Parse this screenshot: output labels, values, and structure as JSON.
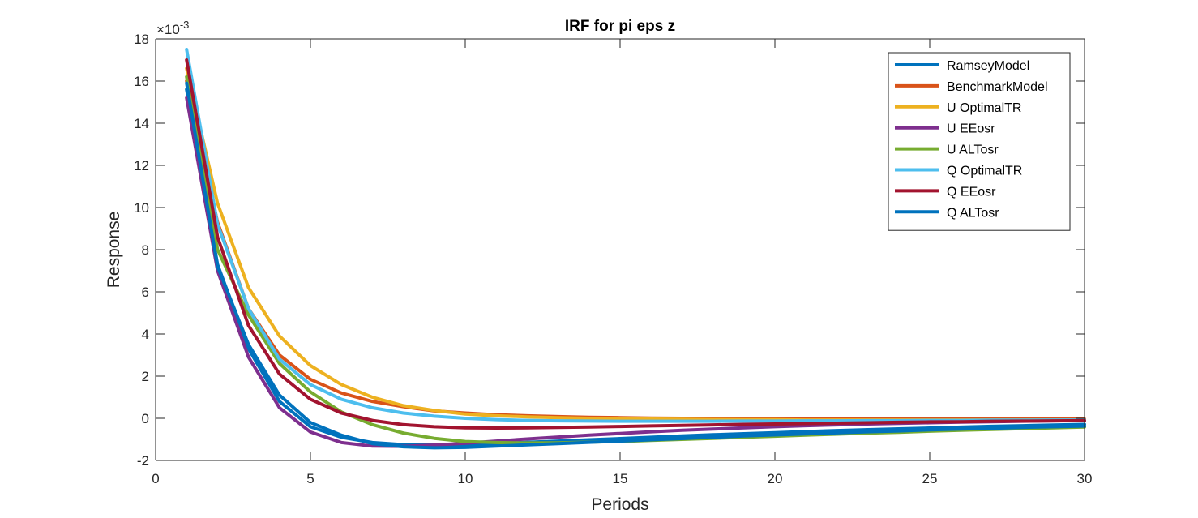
{
  "chart_data": {
    "type": "line",
    "title": "IRF for pi eps z",
    "xlabel": "Periods",
    "ylabel": "Response",
    "y_exponent_label": "×10",
    "y_exponent_power": "-3",
    "xlim": [
      0,
      30
    ],
    "ylim": [
      -2,
      18
    ],
    "x_ticks": [
      0,
      5,
      10,
      15,
      20,
      25,
      30
    ],
    "y_ticks": [
      -2,
      0,
      2,
      4,
      6,
      8,
      10,
      12,
      14,
      16,
      18
    ],
    "grid": false,
    "legend_position": "top-right",
    "x": [
      1,
      2,
      3,
      4,
      5,
      6,
      7,
      8,
      9,
      10,
      11,
      12,
      13,
      14,
      15,
      16,
      17,
      18,
      19,
      20,
      21,
      22,
      23,
      24,
      25,
      26,
      27,
      28,
      29,
      30
    ],
    "series": [
      {
        "name": "RamseyModel",
        "color": "#0072BD",
        "values": [
          15.6,
          7.3,
          3.3,
          0.8,
          -0.4,
          -0.9,
          -1.15,
          -1.25,
          -1.27,
          -1.25,
          -1.2,
          -1.14,
          -1.08,
          -1.02,
          -0.96,
          -0.9,
          -0.84,
          -0.78,
          -0.73,
          -0.68,
          -0.63,
          -0.58,
          -0.54,
          -0.5,
          -0.46,
          -0.42,
          -0.38,
          -0.35,
          -0.32,
          -0.29
        ]
      },
      {
        "name": "BenchmarkModel",
        "color": "#D95319",
        "values": [
          16.0,
          9.3,
          5.2,
          3.0,
          1.85,
          1.2,
          0.8,
          0.55,
          0.35,
          0.25,
          0.17,
          0.12,
          0.08,
          0.05,
          0.03,
          0.01,
          0.0,
          -0.01,
          -0.02,
          -0.03,
          -0.03,
          -0.04,
          -0.04,
          -0.04,
          -0.04,
          -0.04,
          -0.04,
          -0.04,
          -0.04,
          -0.04
        ]
      },
      {
        "name": "U OptimalTR",
        "color": "#EDB120",
        "values": [
          16.6,
          10.2,
          6.2,
          3.9,
          2.5,
          1.6,
          1.0,
          0.6,
          0.37,
          0.2,
          0.12,
          0.07,
          0.03,
          0.0,
          -0.02,
          -0.04,
          -0.05,
          -0.06,
          -0.07,
          -0.07,
          -0.08,
          -0.08,
          -0.08,
          -0.08,
          -0.08,
          -0.08,
          -0.08,
          -0.08,
          -0.08,
          -0.08
        ]
      },
      {
        "name": "U EEosr",
        "color": "#7E2F8E",
        "values": [
          15.2,
          7.0,
          2.9,
          0.5,
          -0.65,
          -1.15,
          -1.32,
          -1.33,
          -1.27,
          -1.18,
          -1.08,
          -0.98,
          -0.89,
          -0.8,
          -0.72,
          -0.64,
          -0.57,
          -0.51,
          -0.45,
          -0.4,
          -0.35,
          -0.31,
          -0.27,
          -0.24,
          -0.21,
          -0.18,
          -0.16,
          -0.14,
          -0.12,
          -0.1
        ]
      },
      {
        "name": "U ALTosr",
        "color": "#77AC30",
        "values": [
          16.2,
          8.0,
          4.9,
          2.6,
          1.25,
          0.3,
          -0.3,
          -0.7,
          -0.95,
          -1.1,
          -1.15,
          -1.17,
          -1.16,
          -1.13,
          -1.1,
          -1.05,
          -1.0,
          -0.95,
          -0.9,
          -0.85,
          -0.8,
          -0.75,
          -0.7,
          -0.66,
          -0.61,
          -0.57,
          -0.53,
          -0.49,
          -0.45,
          -0.41
        ]
      },
      {
        "name": "Q OptimalTR",
        "color": "#4DBEEE",
        "values": [
          17.5,
          9.2,
          5.2,
          2.8,
          1.6,
          0.9,
          0.5,
          0.25,
          0.1,
          0.0,
          -0.06,
          -0.1,
          -0.12,
          -0.13,
          -0.14,
          -0.14,
          -0.14,
          -0.14,
          -0.13,
          -0.13,
          -0.12,
          -0.12,
          -0.11,
          -0.11,
          -0.1,
          -0.1,
          -0.09,
          -0.09,
          -0.08,
          -0.08
        ]
      },
      {
        "name": "Q EEosr",
        "color": "#A2142F",
        "values": [
          17.0,
          8.6,
          4.4,
          2.1,
          0.9,
          0.25,
          -0.1,
          -0.3,
          -0.4,
          -0.45,
          -0.46,
          -0.45,
          -0.43,
          -0.41,
          -0.39,
          -0.36,
          -0.34,
          -0.31,
          -0.29,
          -0.27,
          -0.25,
          -0.23,
          -0.21,
          -0.19,
          -0.17,
          -0.16,
          -0.14,
          -0.13,
          -0.12,
          -0.11
        ]
      },
      {
        "name": "Q ALTosr",
        "color": "#0072BD",
        "values": [
          15.9,
          7.2,
          3.5,
          1.1,
          -0.2,
          -0.8,
          -1.2,
          -1.35,
          -1.4,
          -1.38,
          -1.32,
          -1.26,
          -1.2,
          -1.14,
          -1.08,
          -1.02,
          -0.96,
          -0.9,
          -0.84,
          -0.79,
          -0.74,
          -0.69,
          -0.64,
          -0.6,
          -0.55,
          -0.51,
          -0.47,
          -0.43,
          -0.4,
          -0.37
        ]
      }
    ]
  }
}
